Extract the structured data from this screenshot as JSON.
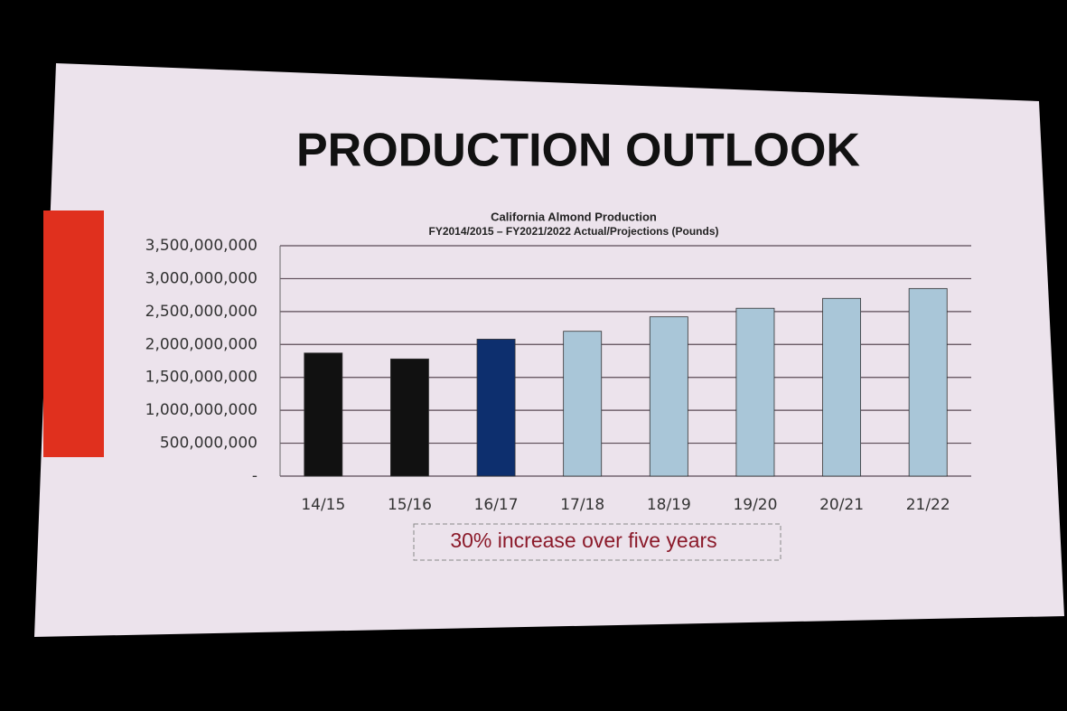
{
  "chart_data": {
    "type": "bar",
    "slide_title": "PRODUCTION OUTLOOK",
    "title": "California Almond Production",
    "subtitle": "FY2014/2015 – FY2021/2022 Actual/Projections (Pounds)",
    "annotation": "30% increase over five years",
    "categories": [
      "14/15",
      "15/16",
      "16/17",
      "17/18",
      "18/19",
      "19/20",
      "20/21",
      "21/22"
    ],
    "values": [
      1870000000,
      1780000000,
      2080000000,
      2200000000,
      2420000000,
      2550000000,
      2700000000,
      2850000000
    ],
    "colors": [
      "#111111",
      "#111111",
      "#0d2f6e",
      "#a9c6d8",
      "#a9c6d8",
      "#a9c6d8",
      "#a9c6d8",
      "#a9c6d8"
    ],
    "ylim": [
      0,
      3500000000
    ],
    "yticks": [
      {
        "value": 0,
        "label": "-"
      },
      {
        "value": 500000000,
        "label": "500,000,000"
      },
      {
        "value": 1000000000,
        "label": "1,000,000,000"
      },
      {
        "value": 1500000000,
        "label": "1,500,000,000"
      },
      {
        "value": 2000000000,
        "label": "2,000,000,000"
      },
      {
        "value": 2500000000,
        "label": "2,500,000,000"
      },
      {
        "value": 3000000000,
        "label": "3,000,000,000"
      },
      {
        "value": 3500000000,
        "label": "3,500,000,000"
      }
    ],
    "grid": true
  }
}
